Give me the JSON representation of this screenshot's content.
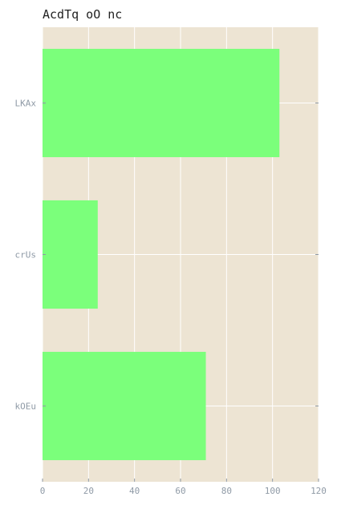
{
  "chart_data": {
    "type": "bar",
    "orientation": "horizontal",
    "title": "AcdTq oO nc",
    "xlabel": "",
    "ylabel": "",
    "categories": [
      "LKAx",
      "crUs",
      "kOEu"
    ],
    "values": [
      103,
      24,
      71
    ],
    "xlim": [
      0,
      120
    ],
    "xticks": [
      0,
      20,
      40,
      60,
      80,
      100,
      120
    ],
    "grid": true,
    "colors": {
      "bar": "#7bff7b",
      "plot_background": "#ede4d3",
      "grid": "#ffffff",
      "tick_label": "#8f9aa6"
    }
  }
}
